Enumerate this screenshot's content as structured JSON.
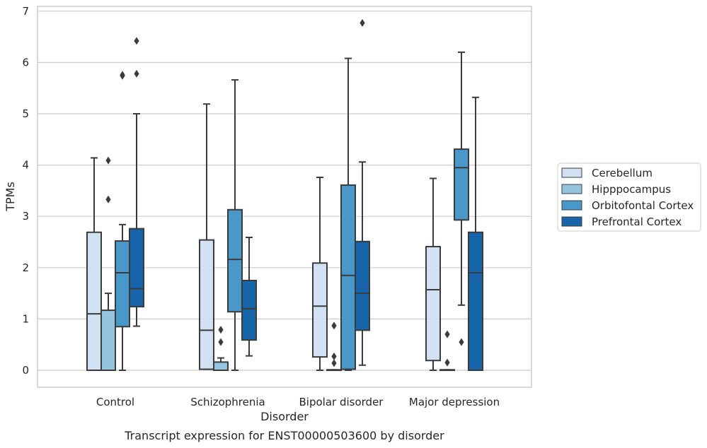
{
  "chart_data": {
    "type": "box",
    "caption": "Transcript expression for ENST00000503600 by disorder",
    "xlabel": "Disorder",
    "ylabel": "TPMs",
    "ylim": [
      -0.33,
      7.1
    ],
    "yticks": [
      0,
      1,
      2,
      3,
      4,
      5,
      6,
      7
    ],
    "grid": "horizontal",
    "legend_position": "right",
    "categories": [
      "Control",
      "Schizophrenia",
      "Bipolar disorder",
      "Major depression"
    ],
    "series": [
      {
        "name": "Cerebellum",
        "color": "#d0e1f2",
        "boxes": [
          {
            "whisker_low": 0,
            "q1": 0,
            "median": 1.1,
            "q3": 2.69,
            "whisker_high": 4.14,
            "outliers": []
          },
          {
            "whisker_low": 0.02,
            "q1": 0.02,
            "median": 0.78,
            "q3": 2.54,
            "whisker_high": 5.19,
            "outliers": []
          },
          {
            "whisker_low": 0,
            "q1": 0.26,
            "median": 1.25,
            "q3": 2.09,
            "whisker_high": 3.76,
            "outliers": []
          },
          {
            "whisker_low": 0,
            "q1": 0.19,
            "median": 1.57,
            "q3": 2.41,
            "whisker_high": 3.74,
            "outliers": []
          }
        ]
      },
      {
        "name": "Hipppocampus",
        "color": "#94c4df",
        "boxes": [
          {
            "whisker_low": 0,
            "q1": 0,
            "median": 0,
            "q3": 1.17,
            "whisker_high": 1.5,
            "outliers": [
              3.33,
              4.09
            ]
          },
          {
            "whisker_low": 0,
            "q1": 0,
            "median": 0,
            "q3": 0.16,
            "whisker_high": 0.24,
            "outliers": [
              0.55,
              0.79
            ]
          },
          {
            "whisker_low": 0,
            "q1": 0,
            "median": 0,
            "q3": 0.01,
            "whisker_high": 0.01,
            "outliers": [
              0.14,
              0.27,
              0.87
            ]
          },
          {
            "whisker_low": 0,
            "q1": 0,
            "median": 0,
            "q3": 0.01,
            "whisker_high": 0.01,
            "outliers": [
              0.15,
              0.7
            ]
          }
        ]
      },
      {
        "name": "Orbitofontal Cortex",
        "color": "#4a98c9",
        "boxes": [
          {
            "whisker_low": 0,
            "q1": 0.85,
            "median": 1.9,
            "q3": 2.52,
            "whisker_high": 2.84,
            "outliers": [
              5.74,
              5.76
            ]
          },
          {
            "whisker_low": 0,
            "q1": 1.14,
            "median": 2.16,
            "q3": 3.13,
            "whisker_high": 5.66,
            "outliers": []
          },
          {
            "whisker_low": 0,
            "q1": 0.02,
            "median": 1.85,
            "q3": 3.61,
            "whisker_high": 6.08,
            "outliers": []
          },
          {
            "whisker_low": 1.27,
            "q1": 2.93,
            "median": 3.95,
            "q3": 4.31,
            "whisker_high": 6.2,
            "outliers": [
              0.55
            ]
          }
        ]
      },
      {
        "name": "Prefrontal Cortex",
        "color": "#1764ab",
        "boxes": [
          {
            "whisker_low": 0.86,
            "q1": 1.24,
            "median": 1.59,
            "q3": 2.76,
            "whisker_high": 5.0,
            "outliers": [
              5.78,
              6.42
            ]
          },
          {
            "whisker_low": 0.28,
            "q1": 0.59,
            "median": 1.2,
            "q3": 1.75,
            "whisker_high": 2.59,
            "outliers": []
          },
          {
            "whisker_low": 0.1,
            "q1": 0.78,
            "median": 1.5,
            "q3": 2.51,
            "whisker_high": 4.06,
            "outliers": [
              6.77
            ]
          },
          {
            "whisker_low": 0,
            "q1": 0,
            "median": 1.9,
            "q3": 2.69,
            "whisker_high": 5.32,
            "outliers": []
          }
        ]
      }
    ]
  }
}
